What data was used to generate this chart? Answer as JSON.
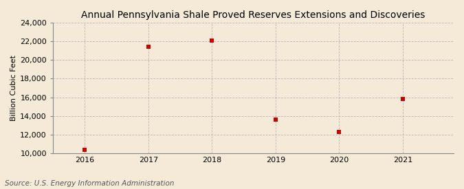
{
  "title": "Annual Pennsylvania Shale Proved Reserves Extensions and Discoveries",
  "ylabel": "Billion Cubic Feet",
  "source": "Source: U.S. Energy Information Administration",
  "years": [
    2016,
    2017,
    2018,
    2019,
    2020,
    2021
  ],
  "values": [
    10400,
    21400,
    22100,
    13600,
    12300,
    15800
  ],
  "ylim": [
    10000,
    24000
  ],
  "yticks": [
    10000,
    12000,
    14000,
    16000,
    18000,
    20000,
    22000,
    24000
  ],
  "marker_color": "#cc0000",
  "marker_size": 5,
  "marker_style": "s",
  "grid_color": "#aaaaaa",
  "background_color": "#f5ead8",
  "title_fontsize": 10,
  "title_fontweight": "normal",
  "label_fontsize": 8,
  "tick_fontsize": 8,
  "source_fontsize": 7.5,
  "xlim_left": 2015.5,
  "xlim_right": 2021.8
}
